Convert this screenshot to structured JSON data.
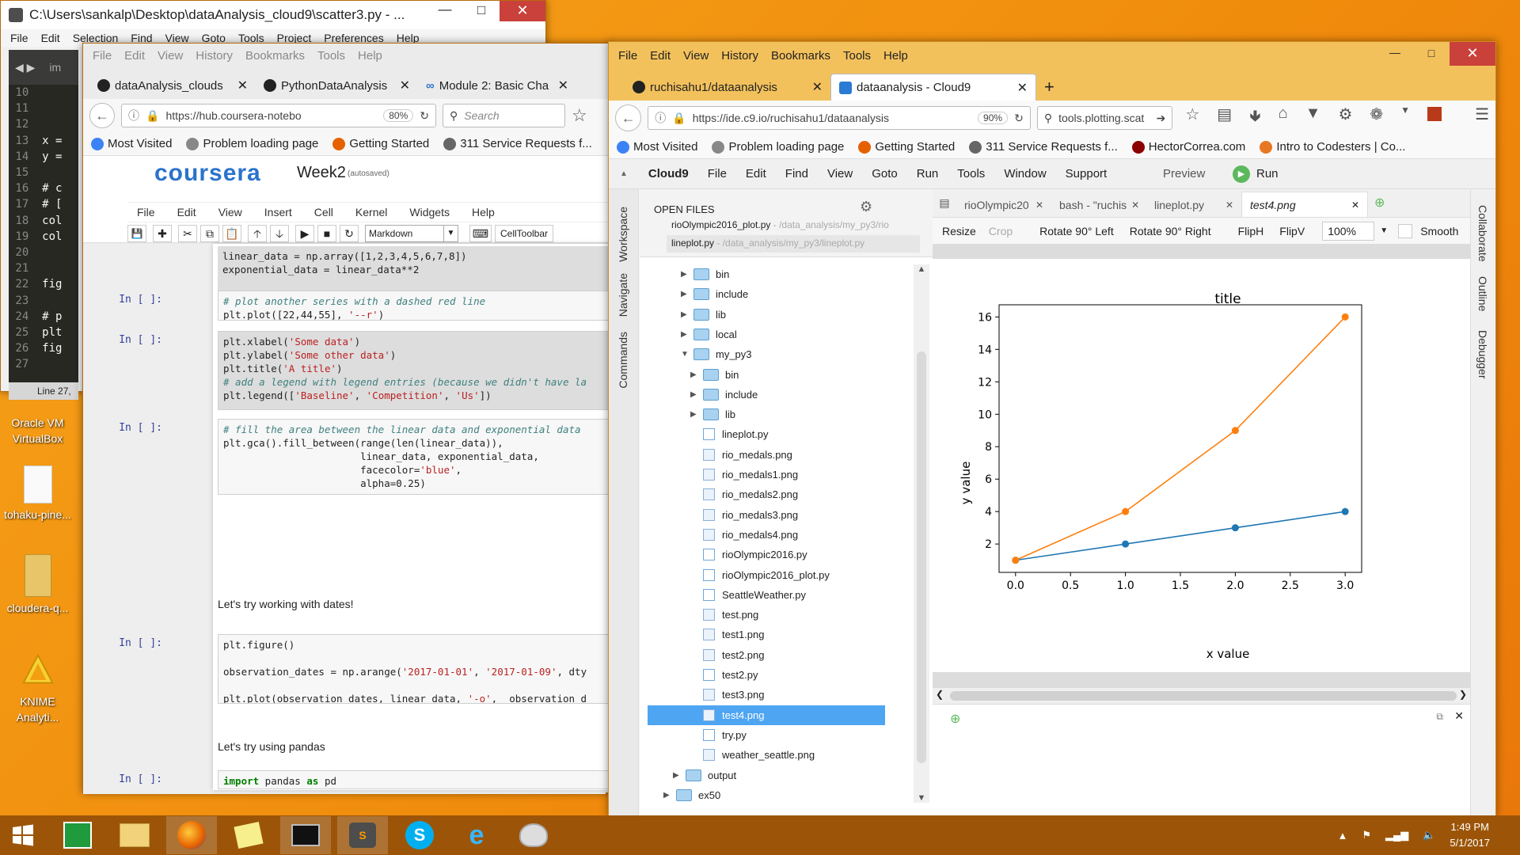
{
  "desktop": {
    "icons": [
      {
        "label": "Oracle VM VirtualBox",
        "icon": "virtualbox-icon"
      },
      {
        "label": "tohaku-pine...",
        "icon": "image-file-icon"
      },
      {
        "label": "cloudera-q...",
        "icon": "folder-icon"
      },
      {
        "label": "KNIME Analyti...",
        "icon": "knime-icon"
      }
    ]
  },
  "editor_window": {
    "title": "C:\\Users\\sankalp\\Desktop\\dataAnalysis_cloud9\\scatter3.py - ...",
    "menu": [
      "File",
      "Edit",
      "Selection",
      "Find",
      "View",
      "Goto",
      "Tools",
      "Project",
      "Preferences",
      "Help"
    ],
    "tab_label": "im",
    "lines": [
      {
        "n": "10",
        "code": ""
      },
      {
        "n": "11",
        "code": ""
      },
      {
        "n": "12",
        "code": ""
      },
      {
        "n": "13",
        "code": "x ="
      },
      {
        "n": "14",
        "code": "y ="
      },
      {
        "n": "15",
        "code": ""
      },
      {
        "n": "16",
        "code": "# c"
      },
      {
        "n": "17",
        "code": "# ["
      },
      {
        "n": "18",
        "code": "col"
      },
      {
        "n": "19",
        "code": "col"
      },
      {
        "n": "20",
        "code": ""
      },
      {
        "n": "21",
        "code": ""
      },
      {
        "n": "22",
        "code": "fig"
      },
      {
        "n": "23",
        "code": ""
      },
      {
        "n": "24",
        "code": "# p"
      },
      {
        "n": "25",
        "code": "plt"
      },
      {
        "n": "26",
        "code": "fig"
      },
      {
        "n": "27",
        "code": ""
      }
    ],
    "status": "Line 27,"
  },
  "browser_left": {
    "menu": [
      "File",
      "Edit",
      "View",
      "History",
      "Bookmarks",
      "Tools",
      "Help"
    ],
    "tabs": [
      "dataAnalysis_clouds",
      "PythonDataAnalysis",
      "Module 2: Basic Cha"
    ],
    "url": "https://hub.coursera-notebo",
    "zoom": "80%",
    "search_placeholder": "Search",
    "bookmarks": [
      "Most Visited",
      "Problem loading page",
      "Getting Started",
      "311 Service Requests f..."
    ],
    "logo": "coursera",
    "notebook_title": "Week2",
    "autosaved": "(autosaved)",
    "nb_menu": [
      "File",
      "Edit",
      "View",
      "Insert",
      "Cell",
      "Kernel",
      "Widgets",
      "Help"
    ],
    "cell_type": "Markdown",
    "celltoolbar": "CellToolbar",
    "prompt": "In [ ]:",
    "md1": "Let's try working with dates!",
    "md2": "Let's try using pandas"
  },
  "browser_right": {
    "menu": [
      "File",
      "Edit",
      "View",
      "History",
      "Bookmarks",
      "Tools",
      "Help"
    ],
    "tabs": [
      "ruchisahu1/dataanalysis",
      "dataanalysis - Cloud9"
    ],
    "url": "https://ide.c9.io/ruchisahu1/dataanalysis",
    "zoom": "90%",
    "search_value": "tools.plotting.scat",
    "bookmarks": [
      "Most Visited",
      "Problem loading page",
      "Getting Started",
      "311 Service Requests f...",
      "HectorCorrea.com",
      "Intro to Codesters | Co..."
    ]
  },
  "cloud9": {
    "menu": [
      "Cloud9",
      "File",
      "Edit",
      "Find",
      "View",
      "Goto",
      "Run",
      "Tools",
      "Window",
      "Support"
    ],
    "preview": "Preview",
    "run": "Run",
    "left_panels": [
      "Workspace",
      "Navigate",
      "Commands"
    ],
    "right_panels": [
      "Collaborate",
      "Outline",
      "Debugger"
    ],
    "open_files_header": "OPEN FILES",
    "open_files": [
      {
        "name": "rioOlympic2016_plot.py",
        "path": "- /data_analysis/my_py3/rio"
      },
      {
        "name": "lineplot.py",
        "path": "- /data_analysis/my_py3/lineplot.py"
      }
    ],
    "tree": [
      {
        "name": "bin",
        "type": "folder",
        "depth": 0,
        "state": "closed"
      },
      {
        "name": "include",
        "type": "folder",
        "depth": 0,
        "state": "closed"
      },
      {
        "name": "lib",
        "type": "folder",
        "depth": 0,
        "state": "closed"
      },
      {
        "name": "local",
        "type": "folder",
        "depth": 0,
        "state": "closed"
      },
      {
        "name": "my_py3",
        "type": "folder",
        "depth": 0,
        "state": "open"
      },
      {
        "name": "bin",
        "type": "folder",
        "depth": 1,
        "state": "closed"
      },
      {
        "name": "include",
        "type": "folder",
        "depth": 1,
        "state": "closed"
      },
      {
        "name": "lib",
        "type": "folder",
        "depth": 1,
        "state": "closed"
      },
      {
        "name": "lineplot.py",
        "type": "py",
        "depth": 1
      },
      {
        "name": "rio_medals.png",
        "type": "png",
        "depth": 1
      },
      {
        "name": "rio_medals1.png",
        "type": "png",
        "depth": 1
      },
      {
        "name": "rio_medals2.png",
        "type": "png",
        "depth": 1
      },
      {
        "name": "rio_medals3.png",
        "type": "png",
        "depth": 1
      },
      {
        "name": "rio_medals4.png",
        "type": "png",
        "depth": 1
      },
      {
        "name": "rioOlympic2016.py",
        "type": "py",
        "depth": 1
      },
      {
        "name": "rioOlympic2016_plot.py",
        "type": "py",
        "depth": 1
      },
      {
        "name": "SeattleWeather.py",
        "type": "py",
        "depth": 1
      },
      {
        "name": "test.png",
        "type": "png",
        "depth": 1
      },
      {
        "name": "test1.png",
        "type": "png",
        "depth": 1
      },
      {
        "name": "test2.png",
        "type": "png",
        "depth": 1
      },
      {
        "name": "test2.py",
        "type": "py",
        "depth": 1
      },
      {
        "name": "test3.png",
        "type": "png",
        "depth": 1
      },
      {
        "name": "test4.png",
        "type": "png",
        "depth": 1,
        "selected": true
      },
      {
        "name": "try.py",
        "type": "py",
        "depth": 1
      },
      {
        "name": "weather_seattle.png",
        "type": "png",
        "depth": 1
      },
      {
        "name": "output",
        "type": "folder",
        "depth": -1,
        "state": "closed"
      },
      {
        "name": "ex50",
        "type": "folder",
        "depth": -2,
        "state": "closed"
      }
    ],
    "editor_tabs": [
      "rioOlympic20",
      "bash - \"ruchis",
      "lineplot.py",
      "test4.png"
    ],
    "image_toolbar": {
      "resize": "Resize",
      "crop": "Crop",
      "rotate_left": "Rotate 90° Left",
      "rotate_right": "Rotate 90° Right",
      "fliph": "FlipH",
      "flipv": "FlipV",
      "zoom": "100%",
      "smooth": "Smooth"
    }
  },
  "chart_data": {
    "type": "line",
    "title": "title",
    "xlabel": "x value",
    "ylabel": "y value",
    "xlim": [
      -0.15,
      3.15
    ],
    "ylim": [
      0.25,
      16.75
    ],
    "xticks": [
      "0.0",
      "0.5",
      "1.0",
      "1.5",
      "2.0",
      "2.5",
      "3.0"
    ],
    "yticks": [
      "2",
      "4",
      "6",
      "8",
      "10",
      "12",
      "14",
      "16"
    ],
    "x": [
      0,
      1,
      2,
      3
    ],
    "series": [
      {
        "values": [
          1,
          2,
          3,
          4
        ],
        "color": "#1f77b4"
      },
      {
        "values": [
          1,
          4,
          9,
          16
        ],
        "color": "#ff7f0e"
      }
    ],
    "grid": false
  },
  "taskbar": {
    "apps": [
      "start-icon",
      "store-icon",
      "file-explorer-icon",
      "firefox-icon",
      "sticky-notes-icon",
      "cmd-icon",
      "sublime-icon",
      "skype-icon",
      "ie-icon",
      "paint-icon"
    ],
    "time": "1:49 PM",
    "date": "5/1/2017"
  }
}
